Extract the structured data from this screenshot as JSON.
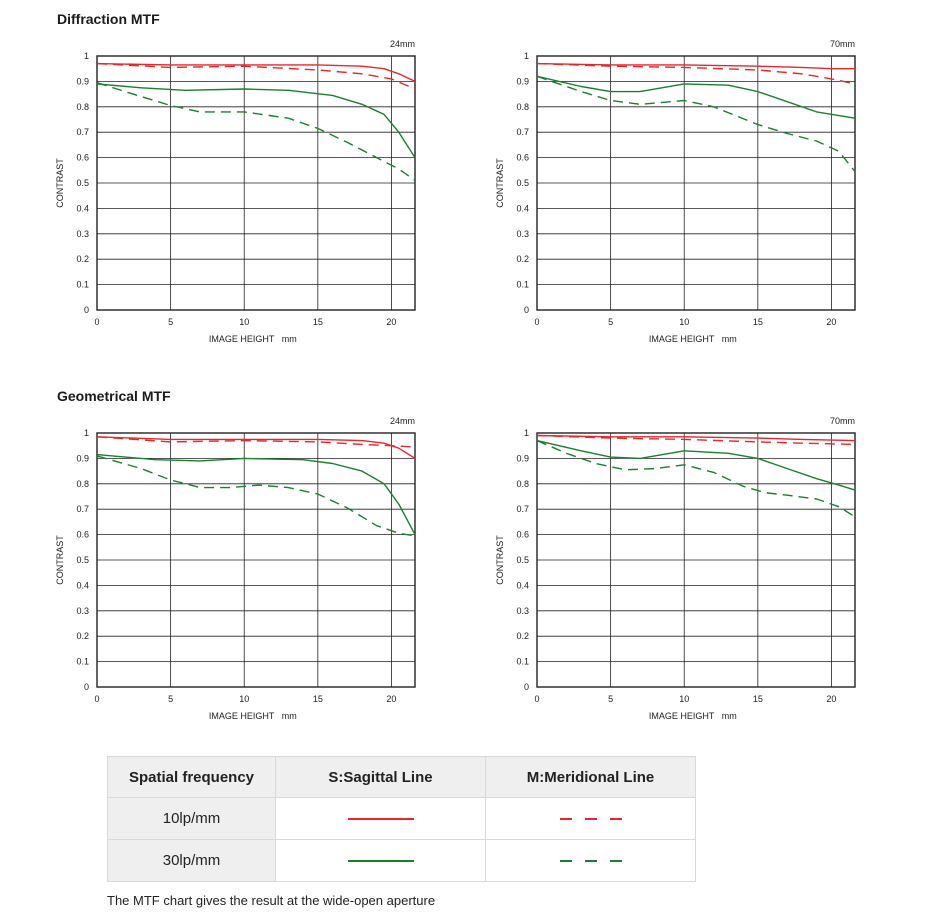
{
  "sections": {
    "diffraction_title": "Diffraction MTF",
    "geometrical_title": "Geometrical MTF"
  },
  "colors": {
    "sagittal_10": "#e8262b",
    "meridional_10": "#e8262b",
    "sagittal_30": "#1a7f2e",
    "meridional_30": "#1a7f2e",
    "grid": "#222222"
  },
  "chart_data": [
    {
      "type": "line",
      "group": "Diffraction MTF",
      "corner_label": "24mm",
      "xlabel": "IMAGE HEIGHT   mm",
      "ylabel": "CONTRAST",
      "xlim": [
        0,
        21.6
      ],
      "ylim": [
        0,
        1
      ],
      "xticks": [
        0,
        5,
        10,
        15,
        20
      ],
      "yticks": [
        0,
        0.1,
        0.2,
        0.3,
        0.4,
        0.5,
        0.6,
        0.7,
        0.8,
        0.9,
        1
      ],
      "grid": true,
      "series": [
        {
          "key": "s10",
          "points": [
            [
              0,
              0.97
            ],
            [
              5,
              0.965
            ],
            [
              10,
              0.965
            ],
            [
              15,
              0.965
            ],
            [
              18,
              0.96
            ],
            [
              19.5,
              0.95
            ],
            [
              20.5,
              0.93
            ],
            [
              21.6,
              0.9
            ]
          ]
        },
        {
          "key": "m10",
          "points": [
            [
              0,
              0.97
            ],
            [
              5,
              0.955
            ],
            [
              10,
              0.96
            ],
            [
              15,
              0.945
            ],
            [
              18,
              0.93
            ],
            [
              20,
              0.91
            ],
            [
              21.6,
              0.87
            ]
          ]
        },
        {
          "key": "s30",
          "points": [
            [
              0,
              0.89
            ],
            [
              3,
              0.875
            ],
            [
              6,
              0.865
            ],
            [
              10,
              0.87
            ],
            [
              13,
              0.865
            ],
            [
              16,
              0.845
            ],
            [
              18,
              0.81
            ],
            [
              19.5,
              0.77
            ],
            [
              20.5,
              0.7
            ],
            [
              21.6,
              0.6
            ]
          ]
        },
        {
          "key": "m30",
          "points": [
            [
              0,
              0.895
            ],
            [
              3,
              0.84
            ],
            [
              5,
              0.805
            ],
            [
              7,
              0.78
            ],
            [
              10,
              0.78
            ],
            [
              13,
              0.755
            ],
            [
              15,
              0.715
            ],
            [
              17,
              0.66
            ],
            [
              19,
              0.6
            ],
            [
              20.5,
              0.555
            ],
            [
              21.6,
              0.51
            ]
          ]
        }
      ]
    },
    {
      "type": "line",
      "group": "Diffraction MTF",
      "corner_label": "70mm",
      "xlabel": "IMAGE HEIGHT   mm",
      "ylabel": "CONTRAST",
      "xlim": [
        0,
        21.6
      ],
      "ylim": [
        0,
        1
      ],
      "xticks": [
        0,
        5,
        10,
        15,
        20
      ],
      "yticks": [
        0,
        0.1,
        0.2,
        0.3,
        0.4,
        0.5,
        0.6,
        0.7,
        0.8,
        0.9,
        1
      ],
      "grid": true,
      "series": [
        {
          "key": "s10",
          "points": [
            [
              0,
              0.97
            ],
            [
              5,
              0.965
            ],
            [
              10,
              0.965
            ],
            [
              15,
              0.96
            ],
            [
              18,
              0.955
            ],
            [
              20,
              0.95
            ],
            [
              21.6,
              0.95
            ]
          ]
        },
        {
          "key": "m10",
          "points": [
            [
              0,
              0.97
            ],
            [
              5,
              0.96
            ],
            [
              10,
              0.955
            ],
            [
              15,
              0.945
            ],
            [
              18,
              0.93
            ],
            [
              20,
              0.91
            ],
            [
              21.6,
              0.89
            ]
          ]
        },
        {
          "key": "s30",
          "points": [
            [
              0,
              0.92
            ],
            [
              3,
              0.88
            ],
            [
              5,
              0.86
            ],
            [
              7,
              0.86
            ],
            [
              10,
              0.89
            ],
            [
              13,
              0.885
            ],
            [
              15,
              0.86
            ],
            [
              17,
              0.82
            ],
            [
              19,
              0.78
            ],
            [
              21.6,
              0.755
            ]
          ]
        },
        {
          "key": "m30",
          "points": [
            [
              0,
              0.92
            ],
            [
              3,
              0.86
            ],
            [
              5,
              0.825
            ],
            [
              7,
              0.81
            ],
            [
              10,
              0.825
            ],
            [
              12,
              0.8
            ],
            [
              15,
              0.73
            ],
            [
              17,
              0.695
            ],
            [
              19,
              0.665
            ],
            [
              20.5,
              0.625
            ],
            [
              21.6,
              0.545
            ]
          ]
        }
      ]
    },
    {
      "type": "line",
      "group": "Geometrical MTF",
      "corner_label": "24mm",
      "xlabel": "IMAGE HEIGHT   mm",
      "ylabel": "CONTRAST",
      "xlim": [
        0,
        21.6
      ],
      "ylim": [
        0,
        1
      ],
      "xticks": [
        0,
        5,
        10,
        15,
        20
      ],
      "yticks": [
        0,
        0.1,
        0.2,
        0.3,
        0.4,
        0.5,
        0.6,
        0.7,
        0.8,
        0.9,
        1
      ],
      "grid": true,
      "series": [
        {
          "key": "s10",
          "points": [
            [
              0,
              0.985
            ],
            [
              5,
              0.975
            ],
            [
              10,
              0.975
            ],
            [
              15,
              0.975
            ],
            [
              18,
              0.97
            ],
            [
              19.5,
              0.96
            ],
            [
              20.5,
              0.94
            ],
            [
              21.6,
              0.9
            ]
          ]
        },
        {
          "key": "m10",
          "points": [
            [
              0,
              0.985
            ],
            [
              5,
              0.965
            ],
            [
              10,
              0.97
            ],
            [
              15,
              0.965
            ],
            [
              18,
              0.955
            ],
            [
              20,
              0.95
            ],
            [
              21.6,
              0.945
            ]
          ]
        },
        {
          "key": "s30",
          "points": [
            [
              0,
              0.915
            ],
            [
              4,
              0.895
            ],
            [
              7,
              0.89
            ],
            [
              10,
              0.9
            ],
            [
              14,
              0.895
            ],
            [
              16,
              0.88
            ],
            [
              18,
              0.85
            ],
            [
              19.5,
              0.8
            ],
            [
              20.5,
              0.72
            ],
            [
              21.6,
              0.6
            ]
          ]
        },
        {
          "key": "m30",
          "points": [
            [
              0,
              0.91
            ],
            [
              3,
              0.86
            ],
            [
              5,
              0.815
            ],
            [
              7,
              0.785
            ],
            [
              9,
              0.785
            ],
            [
              11,
              0.795
            ],
            [
              13,
              0.785
            ],
            [
              15,
              0.76
            ],
            [
              17,
              0.705
            ],
            [
              19,
              0.635
            ],
            [
              20.5,
              0.605
            ],
            [
              21.6,
              0.595
            ]
          ]
        }
      ]
    },
    {
      "type": "line",
      "group": "Geometrical MTF",
      "corner_label": "70mm",
      "xlabel": "IMAGE HEIGHT   mm",
      "ylabel": "CONTRAST",
      "xlim": [
        0,
        21.6
      ],
      "ylim": [
        0,
        1
      ],
      "xticks": [
        0,
        5,
        10,
        15,
        20
      ],
      "yticks": [
        0,
        0.1,
        0.2,
        0.3,
        0.4,
        0.5,
        0.6,
        0.7,
        0.8,
        0.9,
        1
      ],
      "grid": true,
      "series": [
        {
          "key": "s10",
          "points": [
            [
              0,
              0.99
            ],
            [
              5,
              0.985
            ],
            [
              10,
              0.985
            ],
            [
              15,
              0.98
            ],
            [
              18,
              0.975
            ],
            [
              21.6,
              0.97
            ]
          ]
        },
        {
          "key": "m10",
          "points": [
            [
              0,
              0.99
            ],
            [
              5,
              0.98
            ],
            [
              10,
              0.975
            ],
            [
              15,
              0.965
            ],
            [
              18,
              0.96
            ],
            [
              21.6,
              0.955
            ]
          ]
        },
        {
          "key": "s30",
          "points": [
            [
              0,
              0.97
            ],
            [
              3,
              0.93
            ],
            [
              5,
              0.905
            ],
            [
              7,
              0.9
            ],
            [
              10,
              0.93
            ],
            [
              13,
              0.92
            ],
            [
              15,
              0.9
            ],
            [
              17,
              0.86
            ],
            [
              19,
              0.82
            ],
            [
              20.5,
              0.795
            ],
            [
              21.6,
              0.775
            ]
          ]
        },
        {
          "key": "m30",
          "points": [
            [
              0,
              0.97
            ],
            [
              2,
              0.92
            ],
            [
              4,
              0.88
            ],
            [
              6,
              0.855
            ],
            [
              8,
              0.86
            ],
            [
              10,
              0.875
            ],
            [
              12,
              0.845
            ],
            [
              14,
              0.79
            ],
            [
              15.5,
              0.765
            ],
            [
              17,
              0.755
            ],
            [
              19,
              0.74
            ],
            [
              20.5,
              0.71
            ],
            [
              21.6,
              0.67
            ]
          ]
        }
      ]
    }
  ],
  "legend": {
    "header_frequency": "Spatial frequency",
    "header_sagittal": "S:Sagittal Line",
    "header_meridional": "M:Meridional Line",
    "row1_label": "10lp/mm",
    "row2_label": "30lp/mm"
  },
  "footnote": "The MTF chart gives the result at the wide-open aperture"
}
